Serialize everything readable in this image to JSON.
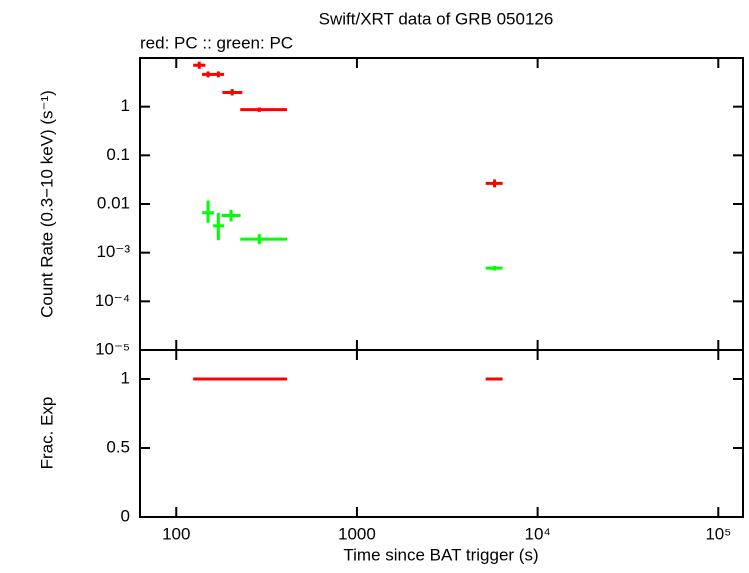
{
  "chart_data": [
    {
      "type": "errorbar",
      "title": "Swift/XRT data of GRB 050126",
      "subtitle": "red: PC  :: green: PC",
      "ylabel": "Count Rate (0.3−10 keV) (s⁻¹)",
      "xscale": "log",
      "yscale": "log",
      "xlim": [
        63,
        137000
      ],
      "ylim": [
        1e-05,
        10
      ],
      "yticks": [
        1,
        0.1,
        0.01,
        {
          "value": 0.001,
          "label": "10⁻³"
        },
        {
          "value": 0.0001,
          "label": "10⁻⁴"
        },
        {
          "value": 1e-05,
          "label": "10⁻⁵"
        }
      ],
      "series": [
        {
          "color": "#ff0000",
          "x": [
            134,
            150,
            171,
            204,
            288,
            5780
          ],
          "x_low": [
            124,
            139,
            160,
            180,
            226,
            5160
          ],
          "x_high": [
            145,
            162,
            184,
            232,
            410,
            6400
          ],
          "values": [
            7.1,
            4.6,
            4.6,
            1.95,
            0.87,
            0.0265
          ],
          "y_low": [
            6.0,
            4.0,
            4.0,
            1.7,
            0.78,
            0.022
          ],
          "y_high": [
            8.4,
            5.3,
            5.3,
            2.3,
            0.96,
            0.032
          ]
        },
        {
          "color": "#00ff00",
          "x": [
            150,
            171,
            201,
            288,
            5780
          ],
          "x_low": [
            139,
            160,
            178,
            226,
            5160
          ],
          "x_high": [
            162,
            184,
            227,
            410,
            6400
          ],
          "values": [
            0.0066,
            0.00356,
            0.0058,
            0.0019,
            0.00048
          ],
          "y_low": [
            0.0041,
            0.0018,
            0.0044,
            0.0015,
            0.00043
          ],
          "y_high": [
            0.0118,
            0.0066,
            0.0076,
            0.0024,
            0.00053
          ]
        }
      ]
    },
    {
      "type": "segments",
      "ylabel": "Frac. Exp",
      "xlabel": "Time since BAT trigger (s)",
      "xscale": "log",
      "xlim": [
        63,
        137000
      ],
      "ylim": [
        0,
        1.21
      ],
      "yticks": [
        0,
        0.5,
        1
      ],
      "xticks": [
        100,
        1000,
        {
          "value": 10000,
          "label": "10⁴"
        },
        {
          "value": 100000,
          "label": "10⁵"
        }
      ],
      "series": [
        {
          "color": "#ff0000",
          "x_low": [
            124,
            5160
          ],
          "x_high": [
            410,
            6400
          ],
          "values": [
            1,
            1
          ]
        }
      ]
    }
  ]
}
